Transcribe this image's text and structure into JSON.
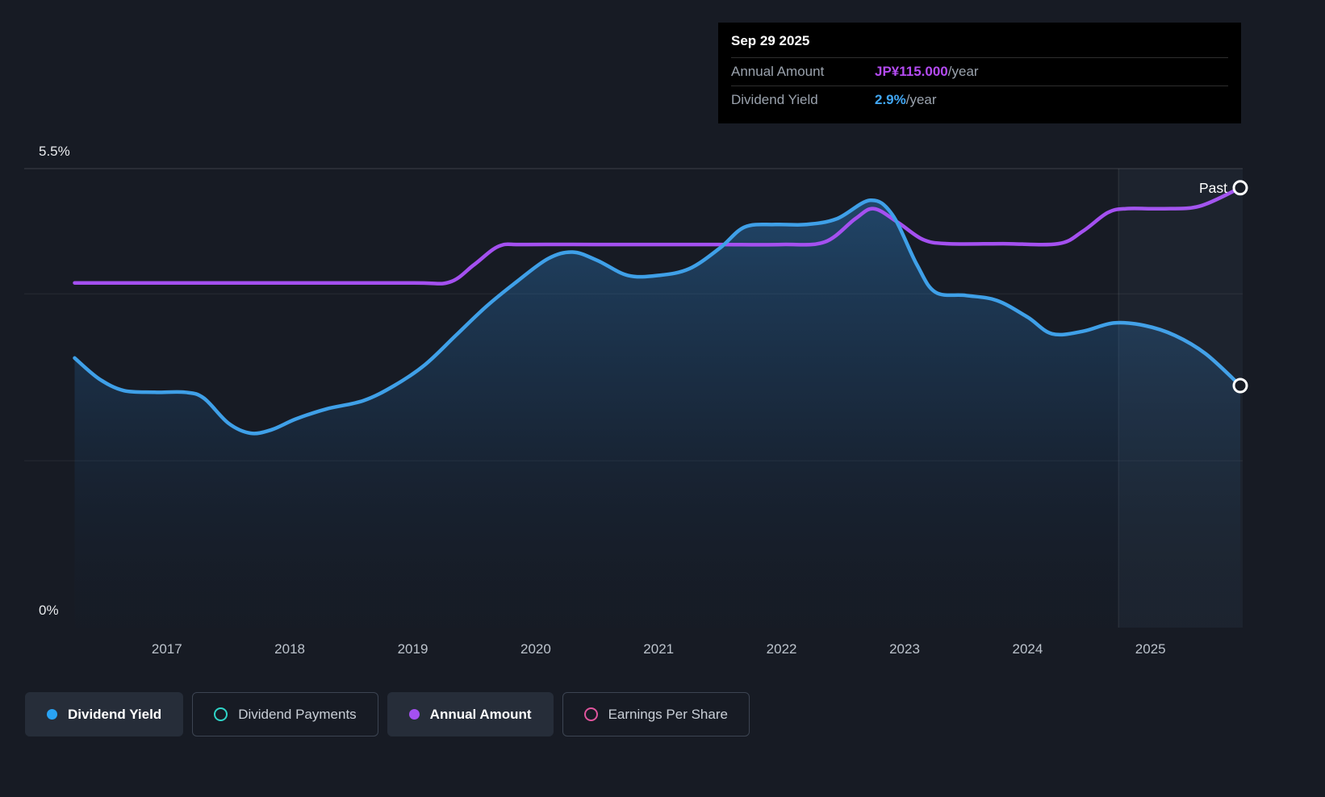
{
  "tooltip": {
    "date": "Sep 29 2025",
    "rows": [
      {
        "label": "Annual Amount",
        "value": "JP¥115.000",
        "suffix": "/year",
        "color": "#b44bf2"
      },
      {
        "label": "Dividend Yield",
        "value": "2.9%",
        "suffix": "/year",
        "color": "#41a7f5"
      }
    ]
  },
  "legend": [
    {
      "label": "Dividend Yield",
      "marker": "filled-dot",
      "color": "#29a3f4",
      "active": true
    },
    {
      "label": "Dividend Payments",
      "marker": "outline-ring",
      "color": "#2fd5c8",
      "active": false
    },
    {
      "label": "Annual Amount",
      "marker": "filled-dot",
      "color": "#a450f0",
      "active": true
    },
    {
      "label": "Earnings Per Share",
      "marker": "outline-ring",
      "color": "#e0559d",
      "active": false
    }
  ],
  "colors": {
    "background": "#171b24",
    "yield_line": "#3fa0e8",
    "amount_line": "#a450f0",
    "tooltip_purple": "#b44bf2",
    "tooltip_blue": "#41a7f5"
  },
  "chart_data": {
    "type": "area",
    "title": "Dividend history",
    "xlim": [
      2015.84,
      2025.75
    ],
    "x_axis": {
      "ticks": [
        2017,
        2018,
        2019,
        2020,
        2021,
        2022,
        2023,
        2024,
        2025
      ]
    },
    "y_axis": {
      "max": 5.5,
      "labels": [
        {
          "text": "5.5%",
          "value": 5.5
        },
        {
          "text": "0%",
          "value": 0
        }
      ],
      "grid_values": [
        5.5,
        4,
        2
      ]
    },
    "past": {
      "label": "Past",
      "divider_x": 2024.74
    },
    "series": [
      {
        "name": "Dividend Yield",
        "color": "#3fa0e8",
        "unit": "percent",
        "area": true,
        "end_value_label": "2.9%/year",
        "points": [
          [
            2016.25,
            3.23
          ],
          [
            2016.45,
            2.98
          ],
          [
            2016.65,
            2.84
          ],
          [
            2016.9,
            2.82
          ],
          [
            2017.15,
            2.82
          ],
          [
            2017.3,
            2.75
          ],
          [
            2017.5,
            2.45
          ],
          [
            2017.68,
            2.33
          ],
          [
            2017.85,
            2.37
          ],
          [
            2018.05,
            2.5
          ],
          [
            2018.3,
            2.62
          ],
          [
            2018.6,
            2.72
          ],
          [
            2018.85,
            2.9
          ],
          [
            2019.1,
            3.15
          ],
          [
            2019.35,
            3.5
          ],
          [
            2019.6,
            3.85
          ],
          [
            2019.85,
            4.15
          ],
          [
            2020.1,
            4.42
          ],
          [
            2020.3,
            4.5
          ],
          [
            2020.5,
            4.4
          ],
          [
            2020.75,
            4.22
          ],
          [
            2021.0,
            4.22
          ],
          [
            2021.25,
            4.3
          ],
          [
            2021.5,
            4.55
          ],
          [
            2021.7,
            4.8
          ],
          [
            2021.95,
            4.83
          ],
          [
            2022.2,
            4.83
          ],
          [
            2022.45,
            4.9
          ],
          [
            2022.72,
            5.12
          ],
          [
            2022.9,
            4.95
          ],
          [
            2023.1,
            4.35
          ],
          [
            2023.25,
            4.02
          ],
          [
            2023.5,
            3.98
          ],
          [
            2023.75,
            3.92
          ],
          [
            2024.0,
            3.72
          ],
          [
            2024.2,
            3.52
          ],
          [
            2024.45,
            3.55
          ],
          [
            2024.7,
            3.65
          ],
          [
            2024.95,
            3.62
          ],
          [
            2025.2,
            3.5
          ],
          [
            2025.45,
            3.28
          ],
          [
            2025.73,
            2.9
          ]
        ]
      },
      {
        "name": "Annual Amount",
        "color": "#a450f0",
        "unit": "display-percent (plotted on hidden currency scale)",
        "end_value_label": "JP¥115.000/year",
        "points": [
          [
            2016.25,
            4.13
          ],
          [
            2017.0,
            4.13
          ],
          [
            2018.0,
            4.13
          ],
          [
            2019.0,
            4.13
          ],
          [
            2019.3,
            4.14
          ],
          [
            2019.5,
            4.35
          ],
          [
            2019.7,
            4.57
          ],
          [
            2019.9,
            4.59
          ],
          [
            2020.5,
            4.59
          ],
          [
            2021.0,
            4.59
          ],
          [
            2021.5,
            4.59
          ],
          [
            2022.0,
            4.59
          ],
          [
            2022.35,
            4.62
          ],
          [
            2022.6,
            4.9
          ],
          [
            2022.75,
            5.02
          ],
          [
            2022.95,
            4.85
          ],
          [
            2023.15,
            4.65
          ],
          [
            2023.35,
            4.6
          ],
          [
            2023.8,
            4.6
          ],
          [
            2024.25,
            4.6
          ],
          [
            2024.45,
            4.75
          ],
          [
            2024.65,
            4.97
          ],
          [
            2024.8,
            5.02
          ],
          [
            2025.1,
            5.02
          ],
          [
            2025.4,
            5.05
          ],
          [
            2025.73,
            5.27
          ]
        ]
      }
    ]
  }
}
